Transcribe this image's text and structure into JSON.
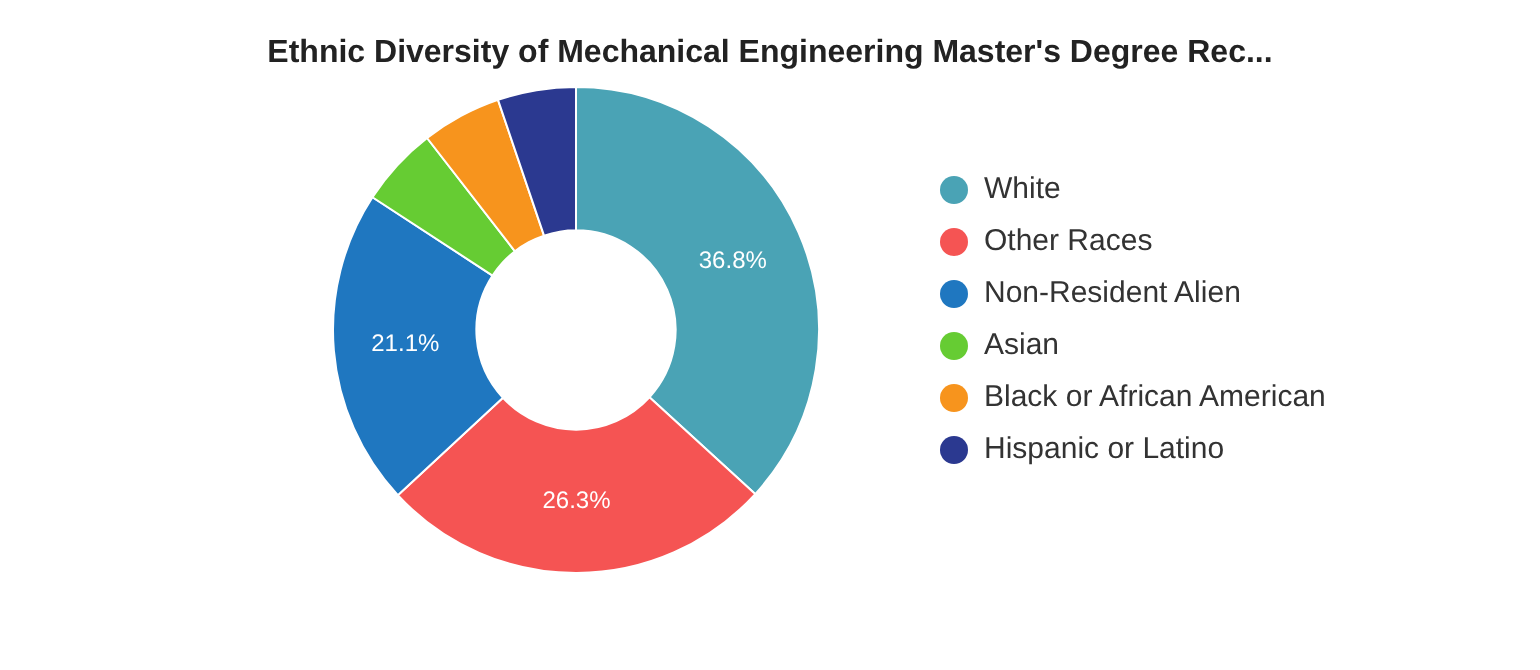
{
  "chart_data": {
    "type": "donut",
    "title": "Ethnic Diversity of Mechanical Engineering Master's Degree Rec...",
    "categories": [
      "White",
      "Other Races",
      "Non-Resident Alien",
      "Asian",
      "Black or African American",
      "Hispanic or Latino"
    ],
    "values": [
      36.8,
      26.3,
      21.1,
      5.3,
      5.3,
      5.2
    ],
    "colors": [
      "#4aa3b5",
      "#f55453",
      "#1f77c0",
      "#66cc33",
      "#f7941d",
      "#2b3990"
    ],
    "value_labels": [
      "36.8%",
      "26.3%",
      "21.1%",
      null,
      null,
      null
    ],
    "legend": "right"
  }
}
